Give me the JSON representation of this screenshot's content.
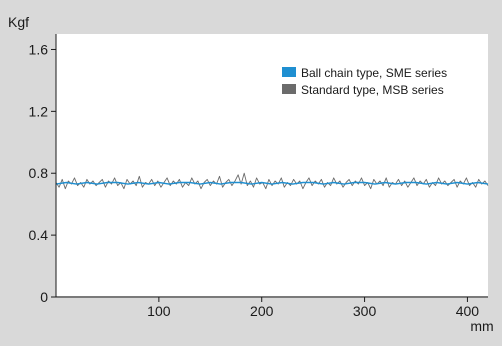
{
  "chart_data": {
    "type": "line",
    "xlabel": "mm",
    "ylabel": "Kgf",
    "xlim": [
      0,
      420
    ],
    "ylim": [
      0,
      1.7
    ],
    "xticks": [
      100,
      200,
      300,
      400
    ],
    "yticks": [
      0,
      0.4,
      0.8,
      1.2,
      1.6
    ],
    "ytick_labels": [
      "0",
      "0.4",
      "0.8",
      "1.2",
      "1.6"
    ],
    "grid": false,
    "legend_position": "top-right",
    "series": [
      {
        "name": "Ball chain type, SME series",
        "color": "#1f8fd1",
        "x": [
          0,
          10,
          20,
          30,
          40,
          50,
          60,
          70,
          80,
          90,
          100,
          110,
          120,
          130,
          140,
          150,
          160,
          170,
          180,
          190,
          200,
          210,
          220,
          230,
          240,
          250,
          260,
          270,
          280,
          290,
          300,
          310,
          320,
          330,
          340,
          350,
          360,
          370,
          380,
          390,
          400,
          410,
          420
        ],
        "y": [
          0.73,
          0.74,
          0.73,
          0.74,
          0.73,
          0.74,
          0.74,
          0.73,
          0.74,
          0.73,
          0.74,
          0.73,
          0.74,
          0.74,
          0.73,
          0.74,
          0.73,
          0.74,
          0.74,
          0.73,
          0.74,
          0.73,
          0.74,
          0.73,
          0.74,
          0.74,
          0.73,
          0.74,
          0.73,
          0.74,
          0.74,
          0.73,
          0.74,
          0.73,
          0.74,
          0.74,
          0.73,
          0.74,
          0.73,
          0.74,
          0.73,
          0.74,
          0.73
        ]
      },
      {
        "name": "Standard type, MSB series",
        "color": "#6b6b6b",
        "x": [
          0,
          3,
          6,
          9,
          12,
          15,
          18,
          21,
          24,
          27,
          30,
          33,
          36,
          39,
          42,
          45,
          48,
          51,
          54,
          57,
          60,
          63,
          66,
          69,
          72,
          75,
          78,
          81,
          84,
          87,
          90,
          93,
          96,
          99,
          102,
          105,
          108,
          111,
          114,
          117,
          120,
          123,
          126,
          129,
          132,
          135,
          138,
          141,
          144,
          147,
          150,
          153,
          156,
          159,
          162,
          165,
          168,
          171,
          174,
          177,
          180,
          183,
          186,
          189,
          192,
          195,
          198,
          201,
          204,
          207,
          210,
          213,
          216,
          219,
          222,
          225,
          228,
          231,
          234,
          237,
          240,
          243,
          246,
          249,
          252,
          255,
          258,
          261,
          264,
          267,
          270,
          273,
          276,
          279,
          282,
          285,
          288,
          291,
          294,
          297,
          300,
          303,
          306,
          309,
          312,
          315,
          318,
          321,
          324,
          327,
          330,
          333,
          336,
          339,
          342,
          345,
          348,
          351,
          354,
          357,
          360,
          363,
          366,
          369,
          372,
          375,
          378,
          381,
          384,
          387,
          390,
          393,
          396,
          399,
          402,
          405,
          408,
          411,
          414,
          417,
          420
        ],
        "y": [
          0.74,
          0.71,
          0.76,
          0.7,
          0.75,
          0.73,
          0.77,
          0.72,
          0.74,
          0.71,
          0.76,
          0.73,
          0.75,
          0.72,
          0.74,
          0.76,
          0.71,
          0.75,
          0.73,
          0.77,
          0.72,
          0.74,
          0.7,
          0.76,
          0.73,
          0.75,
          0.72,
          0.78,
          0.71,
          0.74,
          0.73,
          0.76,
          0.72,
          0.75,
          0.71,
          0.74,
          0.77,
          0.72,
          0.75,
          0.73,
          0.76,
          0.71,
          0.74,
          0.72,
          0.77,
          0.73,
          0.75,
          0.7,
          0.74,
          0.76,
          0.72,
          0.75,
          0.73,
          0.78,
          0.71,
          0.74,
          0.76,
          0.72,
          0.75,
          0.79,
          0.73,
          0.8,
          0.72,
          0.75,
          0.71,
          0.77,
          0.73,
          0.74,
          0.7,
          0.76,
          0.72,
          0.75,
          0.73,
          0.77,
          0.71,
          0.74,
          0.72,
          0.76,
          0.73,
          0.75,
          0.7,
          0.74,
          0.77,
          0.72,
          0.75,
          0.73,
          0.76,
          0.71,
          0.74,
          0.72,
          0.77,
          0.73,
          0.75,
          0.71,
          0.74,
          0.76,
          0.72,
          0.75,
          0.73,
          0.77,
          0.72,
          0.74,
          0.7,
          0.76,
          0.73,
          0.75,
          0.72,
          0.77,
          0.71,
          0.74,
          0.73,
          0.76,
          0.72,
          0.75,
          0.71,
          0.74,
          0.77,
          0.72,
          0.75,
          0.73,
          0.76,
          0.71,
          0.74,
          0.72,
          0.77,
          0.73,
          0.75,
          0.72,
          0.74,
          0.76,
          0.71,
          0.75,
          0.73,
          0.77,
          0.72,
          0.74,
          0.71,
          0.76,
          0.73,
          0.75,
          0.72
        ]
      }
    ]
  }
}
